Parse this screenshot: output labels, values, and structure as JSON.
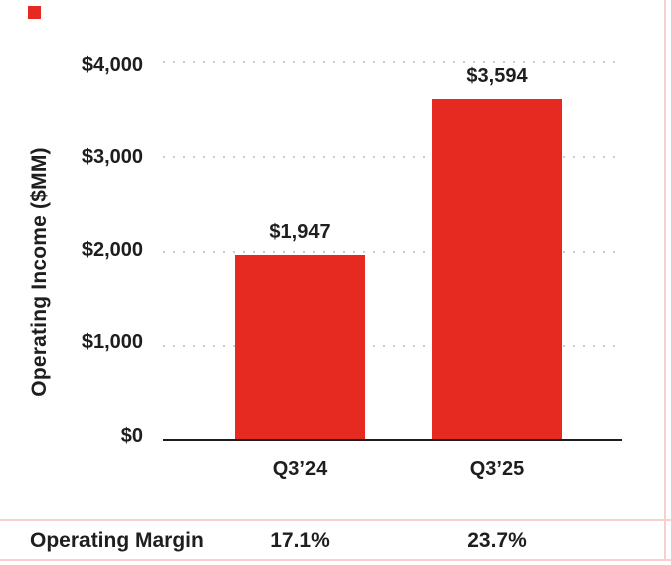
{
  "colors": {
    "bar_red": "#E62A21",
    "pink_line": "#F8CFCC",
    "text": "#1E1E1E",
    "gridline_gray": "#CBCBCB"
  },
  "chart_data": {
    "type": "bar",
    "title": "",
    "xlabel": "",
    "ylabel": "Operating Income ($MM)",
    "categories": [
      "Q3’24",
      "Q3’25"
    ],
    "values": [
      1947,
      3594
    ],
    "value_labels": [
      "$1,947",
      "$3,594"
    ],
    "ylim": [
      0,
      4000
    ],
    "y_ticks": [
      {
        "value": 0,
        "label": "$0"
      },
      {
        "value": 1000,
        "label": "$1,000"
      },
      {
        "value": 2000,
        "label": "$2,000"
      },
      {
        "value": 3000,
        "label": "$3,000"
      },
      {
        "value": 4000,
        "label": "$4,000"
      }
    ],
    "grid": "horizontal dotted gridlines at each $1,000, none at $0",
    "legend": "none",
    "bar_color": "#E62A21"
  },
  "footer": {
    "label": "Operating Margin",
    "values": [
      "17.1%",
      "23.7%"
    ]
  }
}
